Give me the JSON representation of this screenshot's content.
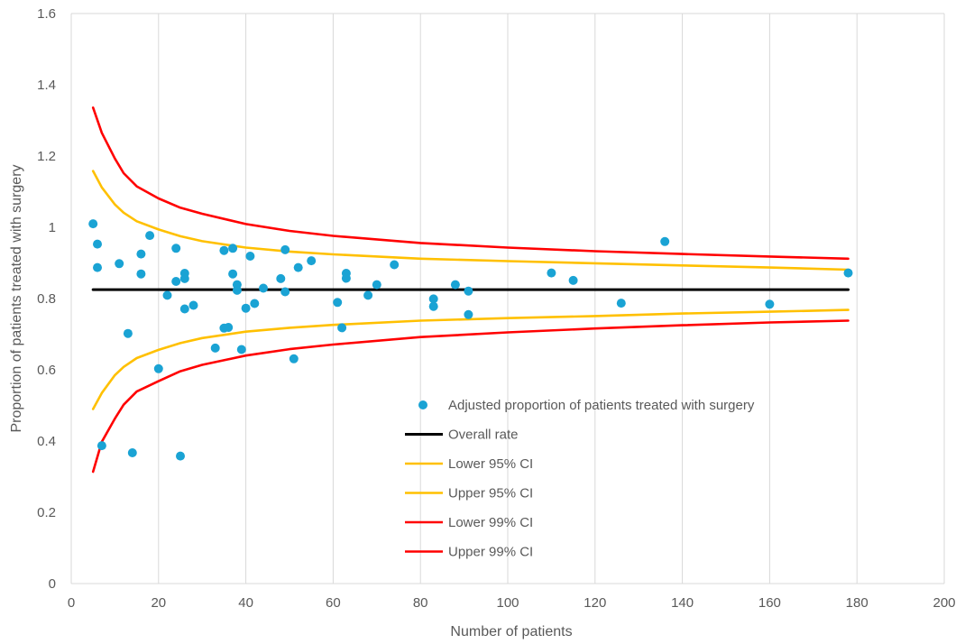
{
  "chart_data": {
    "type": "scatter",
    "title": "",
    "xlabel": "Number of patients",
    "ylabel": "Proportion of patients treated with surgery",
    "xlim": [
      0,
      200
    ],
    "ylim": [
      0,
      1.6
    ],
    "xticks": [
      "0",
      "20",
      "40",
      "60",
      "80",
      "100",
      "120",
      "140",
      "160",
      "180",
      "200"
    ],
    "yticks": [
      "0",
      "0.2",
      "0.4",
      "0.6",
      "0.8",
      "1",
      "1.2",
      "1.4",
      "1.6"
    ],
    "grid": "vertical",
    "legend_position": "bottom-right",
    "colors": {
      "points": "#1aa3d4",
      "overall": "#000000",
      "ci95": "#ffc000",
      "ci99": "#ff0000",
      "grid": "#d9d9d9",
      "text": "#595959"
    },
    "series": [
      {
        "name": "Adjusted proportion of patients treated with surgery",
        "kind": "scatter",
        "points": [
          [
            5,
            1.01
          ],
          [
            6,
            0.953
          ],
          [
            6,
            0.887
          ],
          [
            7,
            0.387
          ],
          [
            11,
            0.898
          ],
          [
            13,
            0.702
          ],
          [
            14,
            0.367
          ],
          [
            16,
            0.925
          ],
          [
            16,
            0.869
          ],
          [
            18,
            0.977
          ],
          [
            20,
            0.603
          ],
          [
            22,
            0.809
          ],
          [
            24,
            0.941
          ],
          [
            24,
            0.848
          ],
          [
            25,
            0.358
          ],
          [
            26,
            0.871
          ],
          [
            26,
            0.856
          ],
          [
            26,
            0.771
          ],
          [
            28,
            0.781
          ],
          [
            33,
            0.661
          ],
          [
            35,
            0.935
          ],
          [
            35,
            0.717
          ],
          [
            36,
            0.719
          ],
          [
            37,
            0.941
          ],
          [
            37,
            0.869
          ],
          [
            38,
            0.839
          ],
          [
            38,
            0.823
          ],
          [
            39,
            0.657
          ],
          [
            40,
            0.773
          ],
          [
            41,
            0.919
          ],
          [
            42,
            0.786
          ],
          [
            44,
            0.829
          ],
          [
            48,
            0.856
          ],
          [
            49,
            0.937
          ],
          [
            49,
            0.819
          ],
          [
            51,
            0.631
          ],
          [
            52,
            0.887
          ],
          [
            55,
            0.906
          ],
          [
            61,
            0.789
          ],
          [
            62,
            0.718
          ],
          [
            63,
            0.871
          ],
          [
            63,
            0.857
          ],
          [
            68,
            0.809
          ],
          [
            70,
            0.839
          ],
          [
            74,
            0.895
          ],
          [
            83,
            0.799
          ],
          [
            83,
            0.778
          ],
          [
            88,
            0.839
          ],
          [
            91,
            0.821
          ],
          [
            91,
            0.755
          ],
          [
            110,
            0.872
          ],
          [
            115,
            0.851
          ],
          [
            126,
            0.787
          ],
          [
            136,
            0.96
          ],
          [
            160,
            0.784
          ],
          [
            178,
            0.872
          ]
        ]
      },
      {
        "name": "Overall rate",
        "kind": "line",
        "x": [
          5,
          178
        ],
        "y": [
          0.825,
          0.825
        ]
      },
      {
        "name": "Lower 95% CI",
        "kind": "line",
        "x": [
          5,
          7,
          10,
          12,
          15,
          20,
          25,
          30,
          40,
          50,
          60,
          80,
          100,
          120,
          140,
          160,
          178
        ],
        "y": [
          0.49,
          0.535,
          0.585,
          0.608,
          0.633,
          0.656,
          0.675,
          0.689,
          0.707,
          0.718,
          0.726,
          0.738,
          0.745,
          0.751,
          0.758,
          0.763,
          0.768
        ]
      },
      {
        "name": "Upper 95% CI",
        "kind": "line",
        "x": [
          5,
          7,
          10,
          12,
          15,
          20,
          25,
          30,
          40,
          50,
          60,
          80,
          100,
          120,
          140,
          160,
          178
        ],
        "y": [
          1.158,
          1.112,
          1.064,
          1.041,
          1.017,
          0.994,
          0.975,
          0.961,
          0.943,
          0.932,
          0.924,
          0.912,
          0.905,
          0.899,
          0.893,
          0.887,
          0.881
        ]
      },
      {
        "name": "Lower 99% CI",
        "kind": "line",
        "x": [
          5,
          7,
          10,
          12,
          15,
          20,
          25,
          30,
          40,
          50,
          60,
          80,
          100,
          120,
          140,
          160,
          178
        ],
        "y": [
          0.314,
          0.398,
          0.463,
          0.502,
          0.539,
          0.568,
          0.596,
          0.614,
          0.64,
          0.658,
          0.671,
          0.692,
          0.705,
          0.716,
          0.725,
          0.733,
          0.738
        ]
      },
      {
        "name": "Upper 99% CI",
        "kind": "line",
        "x": [
          5,
          7,
          10,
          12,
          15,
          20,
          25,
          30,
          40,
          50,
          60,
          80,
          100,
          120,
          140,
          160,
          178
        ],
        "y": [
          1.336,
          1.265,
          1.193,
          1.152,
          1.115,
          1.081,
          1.055,
          1.038,
          1.009,
          0.99,
          0.976,
          0.956,
          0.943,
          0.933,
          0.925,
          0.918,
          0.912
        ]
      }
    ]
  }
}
